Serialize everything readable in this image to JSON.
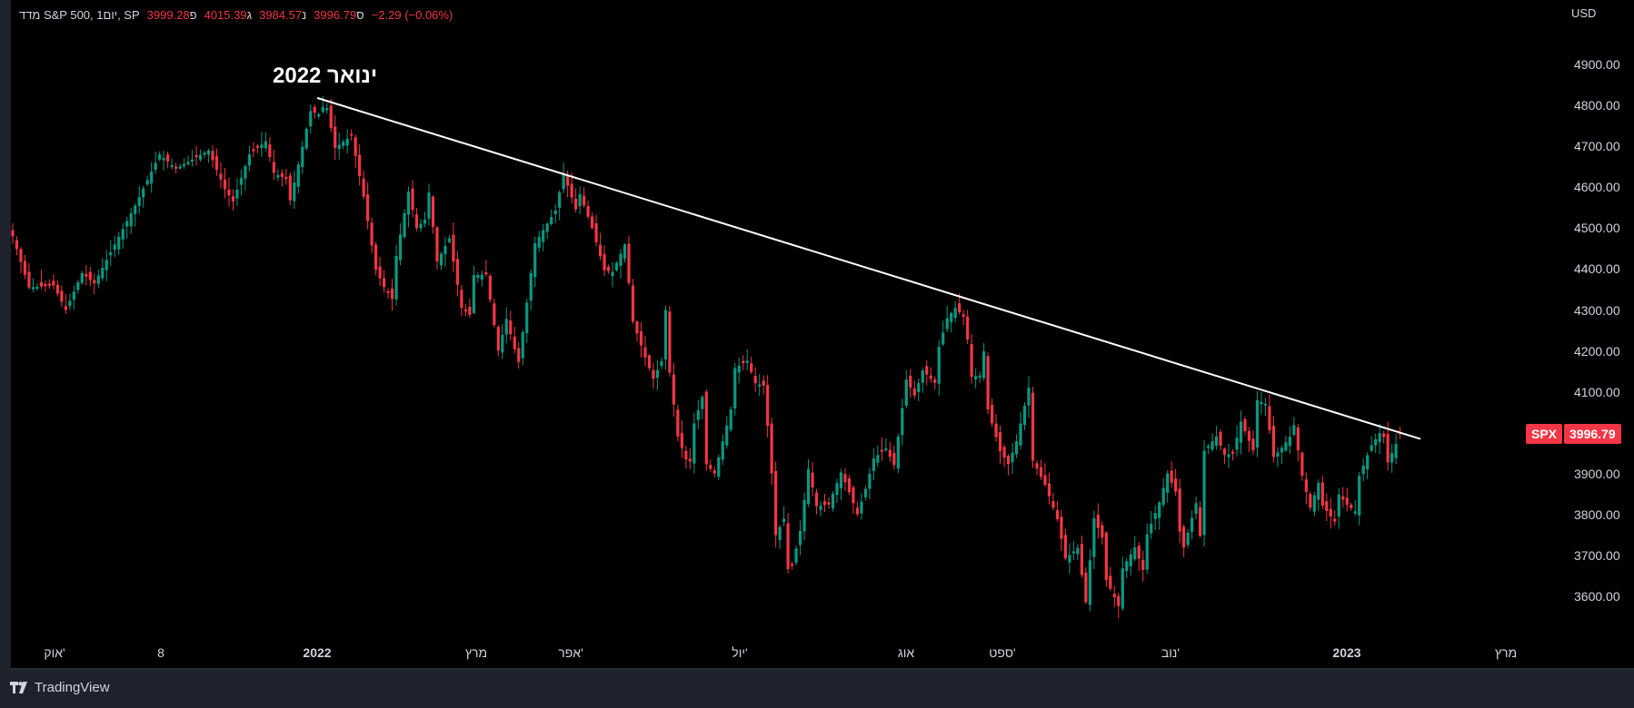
{
  "header": {
    "title": "מדד S&P 500, 1יום, SP",
    "open_label": "פ",
    "open": "3999.28",
    "high_label": "ג",
    "high": "4015.39",
    "low_label": "נ",
    "low": "3984.57",
    "close_label": "ס",
    "close": "3996.79",
    "change": "−2.29 (−0.06%)"
  },
  "price_axis": {
    "currency": "USD",
    "ticks": [
      "4900.00",
      "4800.00",
      "4700.00",
      "4600.00",
      "4500.00",
      "4400.00",
      "4300.00",
      "4200.00",
      "4100.00",
      "3900.00",
      "3800.00",
      "3700.00",
      "3600.00"
    ]
  },
  "price_badge": {
    "symbol": "SPX",
    "price": "3996.79",
    "color": "#f23645"
  },
  "time_axis": {
    "ticks": [
      {
        "label": "אוק'",
        "bold": false
      },
      {
        "label": "8",
        "bold": false
      },
      {
        "label": "2022",
        "bold": true
      },
      {
        "label": "מרץ",
        "bold": false
      },
      {
        "label": "אפר'",
        "bold": false
      },
      {
        "label": "יול'",
        "bold": false
      },
      {
        "label": "אוג",
        "bold": false
      },
      {
        "label": "ספט'",
        "bold": false
      },
      {
        "label": "נוב'",
        "bold": false
      },
      {
        "label": "2023",
        "bold": true
      },
      {
        "label": "מרץ",
        "bold": false
      }
    ]
  },
  "annotation": {
    "text": "ינואר 2022"
  },
  "footer": {
    "brand": "TradingView"
  },
  "colors": {
    "up": "#089981",
    "down": "#f23645",
    "trendline": "#ffffff",
    "background": "#000000"
  },
  "chart_data": {
    "type": "candlestick",
    "title": "S&P 500 Index (SPX), Daily",
    "xlabel": "",
    "ylabel": "USD",
    "ylim": [
      3480,
      4960
    ],
    "grid": false,
    "x_ticks": [
      "Oct 2021",
      "Nov 8 2021",
      "2022",
      "Mar 2022",
      "Apr 2022",
      "Jul 2022",
      "Aug 2022",
      "Sep 2022",
      "Nov 2022",
      "2023",
      "Mar 2023"
    ],
    "y_ticks": [
      3600,
      3700,
      3800,
      3900,
      4000,
      4100,
      4200,
      4300,
      4400,
      4500,
      4600,
      4700,
      4800,
      4900
    ],
    "last_bar": {
      "open": 3999.28,
      "high": 4015.39,
      "low": 3984.57,
      "close": 3996.79,
      "change": -2.29,
      "change_pct": -0.06
    },
    "trendline": {
      "label": "Downtrend resistance from January 2022 high",
      "start": {
        "date": "2022-01-04",
        "price": 4818
      },
      "end": {
        "date": "2023-02-28",
        "price": 3985
      }
    },
    "swing_points": [
      {
        "i": 0,
        "date": "2021-09-15",
        "close": 4480
      },
      {
        "i": 4,
        "date": "2021-09-21",
        "close": 4355
      },
      {
        "i": 10,
        "date": "2021-09-29",
        "close": 4360
      },
      {
        "i": 13,
        "date": "2021-10-04",
        "close": 4300
      },
      {
        "i": 17,
        "date": "2021-10-08",
        "close": 4390
      },
      {
        "i": 20,
        "date": "2021-10-13",
        "close": 4365
      },
      {
        "i": 30,
        "date": "2021-10-27",
        "close": 4555
      },
      {
        "i": 36,
        "date": "2021-11-04",
        "close": 4680
      },
      {
        "i": 40,
        "date": "2021-11-10",
        "close": 4645
      },
      {
        "i": 48,
        "date": "2021-11-22",
        "close": 4690
      },
      {
        "i": 52,
        "date": "2021-11-26",
        "close": 4595
      },
      {
        "i": 54,
        "date": "2021-11-30",
        "close": 4565
      },
      {
        "i": 58,
        "date": "2021-12-06",
        "close": 4680
      },
      {
        "i": 62,
        "date": "2021-12-10",
        "close": 4712
      },
      {
        "i": 64,
        "date": "2021-12-14",
        "close": 4635
      },
      {
        "i": 67,
        "date": "2021-12-17",
        "close": 4620
      },
      {
        "i": 68,
        "date": "2021-12-20",
        "close": 4568
      },
      {
        "i": 73,
        "date": "2021-12-28",
        "close": 4786
      },
      {
        "i": 75,
        "date": "2021-12-30",
        "close": 4778
      },
      {
        "i": 76,
        "date": "2022-01-03",
        "close": 4796
      },
      {
        "i": 77,
        "date": "2022-01-04",
        "close": 4793
      },
      {
        "i": 79,
        "date": "2022-01-06",
        "close": 4696
      },
      {
        "i": 83,
        "date": "2022-01-12",
        "close": 4726
      },
      {
        "i": 86,
        "date": "2022-01-18",
        "close": 4577
      },
      {
        "i": 89,
        "date": "2022-01-21",
        "close": 4398
      },
      {
        "i": 91,
        "date": "2022-01-25",
        "close": 4356
      },
      {
        "i": 93,
        "date": "2022-01-27",
        "close": 4327
      },
      {
        "i": 94,
        "date": "2022-01-28",
        "close": 4432
      },
      {
        "i": 97,
        "date": "2022-02-02",
        "close": 4589
      },
      {
        "i": 99,
        "date": "2022-02-04",
        "close": 4500
      },
      {
        "i": 101,
        "date": "2022-02-08",
        "close": 4521
      },
      {
        "i": 102,
        "date": "2022-02-09",
        "close": 4587
      },
      {
        "i": 104,
        "date": "2022-02-11",
        "close": 4419
      },
      {
        "i": 107,
        "date": "2022-02-16",
        "close": 4475
      },
      {
        "i": 110,
        "date": "2022-02-22",
        "close": 4305
      },
      {
        "i": 112,
        "date": "2022-02-24",
        "close": 4288
      },
      {
        "i": 113,
        "date": "2022-02-25",
        "close": 4385
      },
      {
        "i": 116,
        "date": "2022-03-02",
        "close": 4387
      },
      {
        "i": 119,
        "date": "2022-03-07",
        "close": 4201
      },
      {
        "i": 121,
        "date": "2022-03-09",
        "close": 4278
      },
      {
        "i": 123,
        "date": "2022-03-11",
        "close": 4204
      },
      {
        "i": 124,
        "date": "2022-03-14",
        "close": 4173
      },
      {
        "i": 128,
        "date": "2022-03-18",
        "close": 4463
      },
      {
        "i": 133,
        "date": "2022-03-25",
        "close": 4543
      },
      {
        "i": 135,
        "date": "2022-03-29",
        "close": 4632
      },
      {
        "i": 138,
        "date": "2022-04-01",
        "close": 4546
      },
      {
        "i": 139,
        "date": "2022-04-04",
        "close": 4583
      },
      {
        "i": 142,
        "date": "2022-04-07",
        "close": 4500
      },
      {
        "i": 145,
        "date": "2022-04-12",
        "close": 4397
      },
      {
        "i": 147,
        "date": "2022-04-14",
        "close": 4393
      },
      {
        "i": 150,
        "date": "2022-04-20",
        "close": 4460
      },
      {
        "i": 152,
        "date": "2022-04-22",
        "close": 4272
      },
      {
        "i": 155,
        "date": "2022-04-27",
        "close": 4184
      },
      {
        "i": 157,
        "date": "2022-04-29",
        "close": 4132
      },
      {
        "i": 159,
        "date": "2022-05-03",
        "close": 4175
      },
      {
        "i": 160,
        "date": "2022-05-04",
        "close": 4300
      },
      {
        "i": 161,
        "date": "2022-05-05",
        "close": 4147
      },
      {
        "i": 163,
        "date": "2022-05-09",
        "close": 3991
      },
      {
        "i": 165,
        "date": "2022-05-11",
        "close": 3935
      },
      {
        "i": 166,
        "date": "2022-05-12",
        "close": 3930
      },
      {
        "i": 167,
        "date": "2022-05-13",
        "close": 4023
      },
      {
        "i": 169,
        "date": "2022-05-17",
        "close": 4088
      },
      {
        "i": 170,
        "date": "2022-05-18",
        "close": 3923
      },
      {
        "i": 172,
        "date": "2022-05-20",
        "close": 3901
      },
      {
        "i": 176,
        "date": "2022-05-26",
        "close": 4057
      },
      {
        "i": 177,
        "date": "2022-05-27",
        "close": 4158
      },
      {
        "i": 180,
        "date": "2022-06-02",
        "close": 4176
      },
      {
        "i": 182,
        "date": "2022-06-06",
        "close": 4121
      },
      {
        "i": 184,
        "date": "2022-06-08",
        "close": 4115
      },
      {
        "i": 185,
        "date": "2022-06-09",
        "close": 4017
      },
      {
        "i": 186,
        "date": "2022-06-10",
        "close": 3901
      },
      {
        "i": 187,
        "date": "2022-06-13",
        "close": 3750
      },
      {
        "i": 189,
        "date": "2022-06-15",
        "close": 3790
      },
      {
        "i": 190,
        "date": "2022-06-16",
        "close": 3667
      },
      {
        "i": 191,
        "date": "2022-06-17",
        "close": 3675
      },
      {
        "i": 193,
        "date": "2022-06-22",
        "close": 3760
      },
      {
        "i": 195,
        "date": "2022-06-24",
        "close": 3912
      },
      {
        "i": 197,
        "date": "2022-06-28",
        "close": 3821
      },
      {
        "i": 200,
        "date": "2022-07-01",
        "close": 3825
      },
      {
        "i": 203,
        "date": "2022-07-07",
        "close": 3903
      },
      {
        "i": 205,
        "date": "2022-07-11",
        "close": 3855
      },
      {
        "i": 207,
        "date": "2022-07-13",
        "close": 3801
      },
      {
        "i": 209,
        "date": "2022-07-15",
        "close": 3863
      },
      {
        "i": 211,
        "date": "2022-07-19",
        "close": 3937
      },
      {
        "i": 214,
        "date": "2022-07-22",
        "close": 3962
      },
      {
        "i": 216,
        "date": "2022-07-26",
        "close": 3921
      },
      {
        "i": 219,
        "date": "2022-07-29",
        "close": 4130
      },
      {
        "i": 221,
        "date": "2022-08-02",
        "close": 4091
      },
      {
        "i": 223,
        "date": "2022-08-04",
        "close": 4152
      },
      {
        "i": 226,
        "date": "2022-08-09",
        "close": 4122
      },
      {
        "i": 227,
        "date": "2022-08-10",
        "close": 4210
      },
      {
        "i": 229,
        "date": "2022-08-12",
        "close": 4280
      },
      {
        "i": 231,
        "date": "2022-08-16",
        "close": 4305
      },
      {
        "i": 233,
        "date": "2022-08-18",
        "close": 4283
      },
      {
        "i": 234,
        "date": "2022-08-19",
        "close": 4228
      },
      {
        "i": 235,
        "date": "2022-08-22",
        "close": 4137
      },
      {
        "i": 237,
        "date": "2022-08-24",
        "close": 4140
      },
      {
        "i": 238,
        "date": "2022-08-25",
        "close": 4199
      },
      {
        "i": 239,
        "date": "2022-08-26",
        "close": 4057
      },
      {
        "i": 242,
        "date": "2022-08-31",
        "close": 3955
      },
      {
        "i": 244,
        "date": "2022-09-02",
        "close": 3924
      },
      {
        "i": 246,
        "date": "2022-09-07",
        "close": 3979
      },
      {
        "i": 249,
        "date": "2022-09-12",
        "close": 4110
      },
      {
        "i": 250,
        "date": "2022-09-13",
        "close": 3932
      },
      {
        "i": 253,
        "date": "2022-09-16",
        "close": 3873
      },
      {
        "i": 256,
        "date": "2022-09-21",
        "close": 3789
      },
      {
        "i": 258,
        "date": "2022-09-23",
        "close": 3693
      },
      {
        "i": 261,
        "date": "2022-09-28",
        "close": 3719
      },
      {
        "i": 263,
        "date": "2022-09-30",
        "close": 3586
      },
      {
        "i": 265,
        "date": "2022-10-04",
        "close": 3791
      },
      {
        "i": 267,
        "date": "2022-10-06",
        "close": 3744
      },
      {
        "i": 268,
        "date": "2022-10-07",
        "close": 3640
      },
      {
        "i": 271,
        "date": "2022-10-12",
        "close": 3577
      },
      {
        "i": 272,
        "date": "2022-10-13",
        "close": 3669
      },
      {
        "i": 275,
        "date": "2022-10-18",
        "close": 3720
      },
      {
        "i": 277,
        "date": "2022-10-20",
        "close": 3665
      },
      {
        "i": 278,
        "date": "2022-10-21",
        "close": 3752
      },
      {
        "i": 281,
        "date": "2022-10-26",
        "close": 3830
      },
      {
        "i": 283,
        "date": "2022-10-28",
        "close": 3901
      },
      {
        "i": 285,
        "date": "2022-11-01",
        "close": 3856
      },
      {
        "i": 286,
        "date": "2022-11-02",
        "close": 3759
      },
      {
        "i": 287,
        "date": "2022-11-03",
        "close": 3720
      },
      {
        "i": 290,
        "date": "2022-11-08",
        "close": 3828
      },
      {
        "i": 291,
        "date": "2022-11-09",
        "close": 3748
      },
      {
        "i": 292,
        "date": "2022-11-10",
        "close": 3956
      },
      {
        "i": 295,
        "date": "2022-11-15",
        "close": 3991
      },
      {
        "i": 297,
        "date": "2022-11-17",
        "close": 3946
      },
      {
        "i": 299,
        "date": "2022-11-21",
        "close": 3949
      },
      {
        "i": 301,
        "date": "2022-11-23",
        "close": 4027
      },
      {
        "i": 304,
        "date": "2022-11-29",
        "close": 3957
      },
      {
        "i": 305,
        "date": "2022-11-30",
        "close": 4080
      },
      {
        "i": 307,
        "date": "2022-12-02",
        "close": 4071
      },
      {
        "i": 309,
        "date": "2022-12-06",
        "close": 3941
      },
      {
        "i": 311,
        "date": "2022-12-08",
        "close": 3963
      },
      {
        "i": 313,
        "date": "2022-12-12",
        "close": 3990
      },
      {
        "i": 314,
        "date": "2022-12-13",
        "close": 4019
      },
      {
        "i": 316,
        "date": "2022-12-15",
        "close": 3895
      },
      {
        "i": 318,
        "date": "2022-12-19",
        "close": 3817
      },
      {
        "i": 320,
        "date": "2022-12-21",
        "close": 3878
      },
      {
        "i": 321,
        "date": "2022-12-22",
        "close": 3822
      },
      {
        "i": 324,
        "date": "2022-12-28",
        "close": 3783
      },
      {
        "i": 325,
        "date": "2022-12-29",
        "close": 3849
      },
      {
        "i": 327,
        "date": "2023-01-03",
        "close": 3824
      },
      {
        "i": 329,
        "date": "2023-01-05",
        "close": 3808
      },
      {
        "i": 330,
        "date": "2023-01-06",
        "close": 3895
      },
      {
        "i": 333,
        "date": "2023-01-11",
        "close": 3970
      },
      {
        "i": 335,
        "date": "2023-01-13",
        "close": 3999
      },
      {
        "i": 336,
        "date": "2023-01-17",
        "close": 3990
      },
      {
        "i": 337,
        "date": "2023-01-18",
        "close": 3928
      },
      {
        "i": 339,
        "date": "2023-01-20",
        "close": 3973
      },
      {
        "i": 340,
        "date": "2023-01-23",
        "close": 3996.79
      }
    ]
  }
}
